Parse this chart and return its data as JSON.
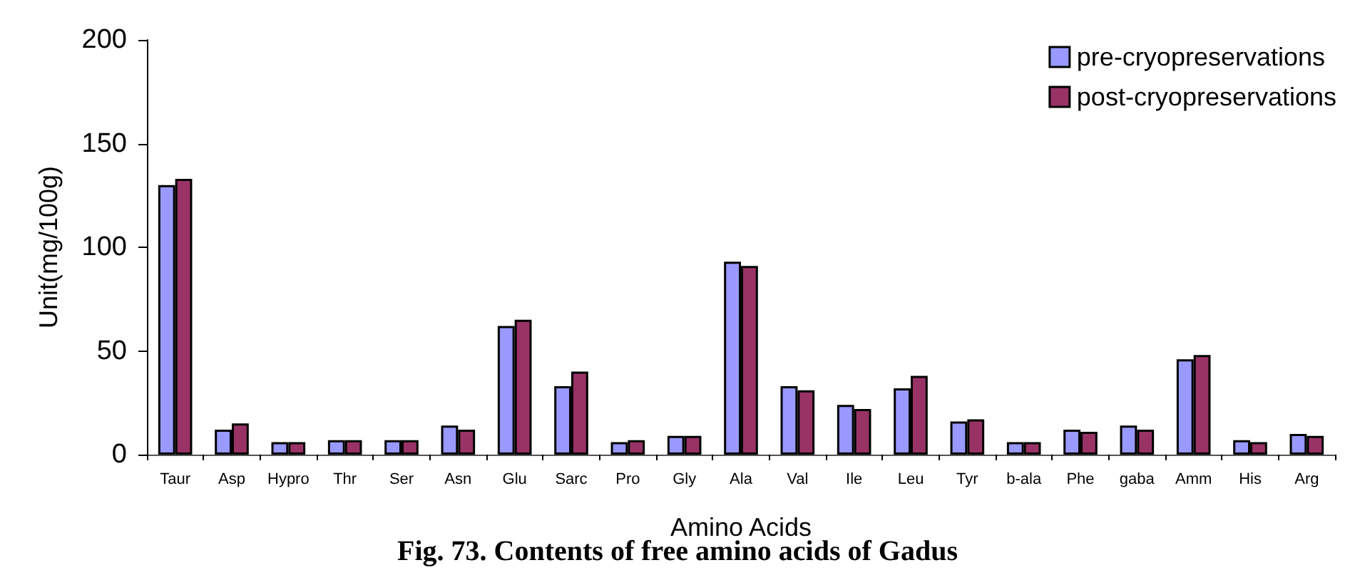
{
  "chart_data": {
    "type": "bar",
    "xlabel": "Amino Acids",
    "ylabel": "Unit(mg/100g)",
    "categories": [
      "Taur",
      "Asp",
      "Hypro",
      "Thr",
      "Ser",
      "Asn",
      "Glu",
      "Sarc",
      "Pro",
      "Gly",
      "Ala",
      "Val",
      "Ile",
      "Leu",
      "Tyr",
      "b-ala",
      "Phe",
      "gaba",
      "Amm",
      "His",
      "Arg"
    ],
    "series": [
      {
        "name": "pre-cryopreservations",
        "color": "#9999ff",
        "values": [
          130,
          12,
          6,
          7,
          7,
          14,
          62,
          33,
          6,
          9,
          93,
          33,
          24,
          32,
          16,
          6,
          12,
          14,
          46,
          7,
          10
        ]
      },
      {
        "name": "post-cryopreservations",
        "color": "#993366",
        "values": [
          133,
          15,
          6,
          7,
          7,
          12,
          65,
          40,
          7,
          9,
          91,
          31,
          22,
          38,
          17,
          6,
          11,
          12,
          48,
          6,
          9
        ]
      }
    ],
    "ylim": [
      0,
      200
    ],
    "yticks": [
      0,
      50,
      100,
      150,
      200
    ],
    "grid": false,
    "legend": "top right",
    "annotations": [
      "Fig. 73. Contents of free amino acids of Gadus"
    ]
  }
}
